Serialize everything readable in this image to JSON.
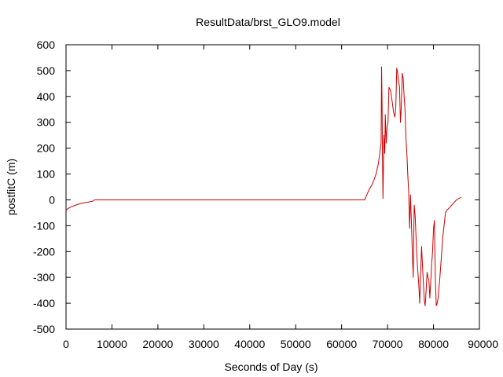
{
  "chart_data": {
    "type": "line",
    "title": "ResultData/brst_GLO9.model",
    "xlabel": "Seconds of Day (s)",
    "ylabel": "postfitC (m)",
    "xlim": [
      0,
      90000
    ],
    "ylim": [
      -500,
      600
    ],
    "xticks": [
      0,
      10000,
      20000,
      30000,
      40000,
      50000,
      60000,
      70000,
      80000,
      90000
    ],
    "yticks": [
      -500,
      -400,
      -300,
      -200,
      -100,
      0,
      100,
      200,
      300,
      400,
      500,
      600
    ],
    "xtick_labels": [
      "0",
      "10000",
      "20000",
      "30000",
      "40000",
      "50000",
      "60000",
      "70000",
      "80000",
      "90000"
    ],
    "ytick_labels": [
      "-500",
      "-400",
      "-300",
      "-200",
      "-100",
      "0",
      "100",
      "200",
      "300",
      "400",
      "500",
      "600"
    ],
    "grid": false,
    "legend": "none",
    "line_color": "#cc0000",
    "series": [
      {
        "x": [
          0,
          500,
          1000,
          2000,
          3000,
          4000,
          5000,
          5800,
          6200,
          10000,
          20000,
          30000,
          40000,
          50000,
          60000,
          65000,
          65500,
          66000,
          66500,
          67000,
          67500,
          68000,
          68300,
          68600,
          68700,
          68800,
          68900,
          69000,
          69200,
          69400,
          69500,
          69700,
          69900,
          70100,
          70300,
          70500,
          70700,
          71000,
          71300,
          71600,
          71800,
          72000,
          72200,
          72400,
          72600,
          72800,
          73000,
          73200,
          73400,
          73600,
          73800,
          74000,
          74200,
          74400,
          74600,
          74800,
          75000,
          75200,
          75400,
          75600,
          75800,
          76000,
          76200,
          76400,
          76600,
          76800,
          77000,
          77200,
          77400,
          77600,
          77800,
          78000,
          78200,
          78400,
          78600,
          78800,
          79000,
          79200,
          79400,
          79600,
          79800,
          80000,
          80200,
          80400,
          80600,
          80800,
          81000,
          81200,
          81400,
          81600,
          81800,
          82000,
          82300,
          82600,
          82900,
          83200,
          83500,
          84000,
          84500,
          85000,
          85500,
          86000
        ],
        "y": [
          -40,
          -33,
          -28,
          -21,
          -15,
          -11,
          -8,
          -5,
          0,
          0,
          0,
          0,
          0,
          0,
          0,
          0,
          20,
          40,
          55,
          75,
          100,
          140,
          180,
          220,
          515,
          380,
          150,
          5,
          250,
          180,
          330,
          220,
          280,
          300,
          435,
          430,
          420,
          380,
          340,
          320,
          360,
          510,
          490,
          460,
          440,
          300,
          360,
          490,
          470,
          400,
          350,
          240,
          180,
          100,
          30,
          -110,
          20,
          -90,
          -210,
          -300,
          -20,
          -60,
          -140,
          -220,
          -280,
          -330,
          -400,
          -290,
          -180,
          -250,
          -320,
          -390,
          -410,
          -350,
          -280,
          -300,
          -310,
          -380,
          -320,
          -250,
          -200,
          -110,
          -80,
          -300,
          -410,
          -400,
          -380,
          -340,
          -300,
          -250,
          -200,
          -150,
          -100,
          -50,
          -40,
          -35,
          -30,
          -20,
          -10,
          0,
          5,
          10
        ]
      }
    ]
  }
}
